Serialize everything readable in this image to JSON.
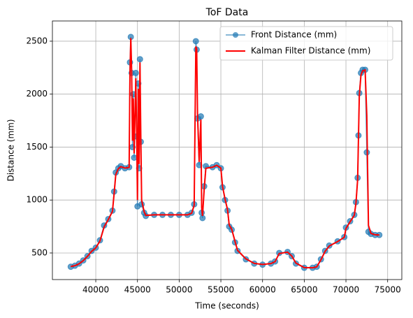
{
  "chart_data": {
    "type": "line",
    "title": "ToF Data",
    "x_label": "Time (seconds)",
    "y_label": "Distance (mm)",
    "x": [
      37000,
      37500,
      38000,
      38500,
      39000,
      39500,
      40000,
      40500,
      41000,
      41500,
      42000,
      42200,
      42400,
      42700,
      43000,
      43500,
      44000,
      44100,
      44200,
      44300,
      44400,
      44500,
      44600,
      44800,
      44900,
      45000,
      45100,
      45200,
      45300,
      45400,
      45500,
      45800,
      46000,
      47000,
      48000,
      49000,
      50000,
      51000,
      51500,
      51800,
      52000,
      52100,
      52200,
      52400,
      52600,
      52700,
      52800,
      53000,
      53200,
      54000,
      54500,
      55000,
      55200,
      55500,
      55800,
      56000,
      56300,
      56700,
      57000,
      58000,
      59000,
      60000,
      61000,
      61500,
      62000,
      63000,
      63500,
      64000,
      65000,
      66000,
      66500,
      67000,
      67500,
      68000,
      69000,
      69800,
      70000,
      70500,
      71000,
      71200,
      71400,
      71500,
      71600,
      71800,
      72000,
      72300,
      72500,
      72700,
      73000,
      73500,
      74000
    ],
    "series": [
      {
        "name": "Front Distance (mm)",
        "color": "#1f77b4",
        "marker": "o",
        "values": [
          370,
          380,
          400,
          430,
          470,
          520,
          550,
          620,
          760,
          820,
          900,
          1080,
          1260,
          1300,
          1320,
          1300,
          1310,
          2300,
          2540,
          2200,
          1500,
          2000,
          1400,
          2200,
          1600,
          940,
          2100,
          1300,
          2330,
          1550,
          960,
          880,
          850,
          860,
          860,
          860,
          860,
          860,
          880,
          960,
          2500,
          2420,
          1770,
          1330,
          1790,
          880,
          830,
          1130,
          1320,
          1310,
          1330,
          1300,
          1120,
          1000,
          900,
          750,
          720,
          600,
          520,
          440,
          400,
          390,
          400,
          420,
          500,
          510,
          470,
          400,
          360,
          360,
          370,
          440,
          520,
          570,
          610,
          650,
          740,
          800,
          860,
          980,
          1210,
          1610,
          2010,
          2200,
          2230,
          2230,
          1450,
          700,
          680,
          670,
          670
        ]
      },
      {
        "name": "Kalman Filter Distance (mm)",
        "color": "#ff0000",
        "values": [
          372,
          380,
          398,
          428,
          468,
          515,
          548,
          612,
          745,
          815,
          892,
          1060,
          1240,
          1295,
          1315,
          1302,
          1308,
          2200,
          2530,
          2230,
          1560,
          1960,
          1440,
          2150,
          1640,
          1000,
          2050,
          1340,
          2300,
          1600,
          1000,
          890,
          855,
          860,
          860,
          860,
          860,
          860,
          875,
          950,
          2450,
          2430,
          1820,
          1360,
          1760,
          930,
          850,
          1100,
          1300,
          1310,
          1328,
          1302,
          1130,
          1010,
          910,
          765,
          725,
          610,
          525,
          445,
          402,
          392,
          400,
          418,
          495,
          508,
          472,
          405,
          362,
          360,
          369,
          435,
          515,
          566,
          608,
          648,
          730,
          795,
          855,
          970,
          1190,
          1580,
          1980,
          2180,
          2220,
          2228,
          1800,
          760,
          685,
          672,
          670
        ]
      }
    ],
    "xlim": [
      34800,
      76700
    ],
    "ylim": [
      249,
      2691
    ],
    "xticks": [
      40000,
      45000,
      50000,
      55000,
      60000,
      65000,
      70000,
      75000
    ],
    "yticks": [
      500,
      1000,
      1500,
      2000,
      2500
    ],
    "grid": true,
    "legend": "upper right"
  }
}
